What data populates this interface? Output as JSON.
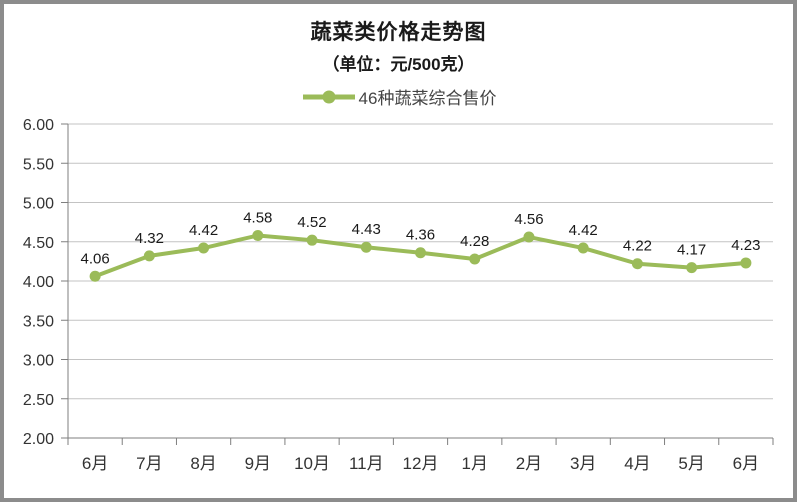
{
  "title": "蔬菜类价格走势图",
  "subtitle": "（单位：元/500克）",
  "legend": {
    "label": "46种蔬菜综合售价"
  },
  "colors": {
    "line": "#9BBB59",
    "grid": "#C3C3C3",
    "axis": "#7F7F7F",
    "axis_text": "#333333",
    "data_label_text": "#1a1a1a",
    "border": "#8C8C8C",
    "background": "#FFFFFF"
  },
  "chart_data": {
    "type": "line",
    "title": "蔬菜类价格走势图",
    "subtitle": "（单位：元/500克）",
    "categories": [
      "6月",
      "7月",
      "8月",
      "9月",
      "10月",
      "11月",
      "12月",
      "1月",
      "2月",
      "3月",
      "4月",
      "5月",
      "6月"
    ],
    "series": [
      {
        "name": "46种蔬菜综合售价",
        "color": "#9BBB59",
        "values": [
          4.06,
          4.32,
          4.42,
          4.58,
          4.52,
          4.43,
          4.36,
          4.28,
          4.56,
          4.42,
          4.22,
          4.17,
          4.23
        ]
      }
    ],
    "xlabel": "",
    "ylabel": "",
    "ylim": [
      2.0,
      6.0
    ],
    "ytick_step": 0.5,
    "ytick_labels": [
      "2.00",
      "2.50",
      "3.00",
      "3.50",
      "4.00",
      "4.50",
      "5.00",
      "5.50",
      "6.00"
    ],
    "grid": true,
    "legend_position": "top",
    "data_labels": true,
    "data_label_decimals": 2
  }
}
